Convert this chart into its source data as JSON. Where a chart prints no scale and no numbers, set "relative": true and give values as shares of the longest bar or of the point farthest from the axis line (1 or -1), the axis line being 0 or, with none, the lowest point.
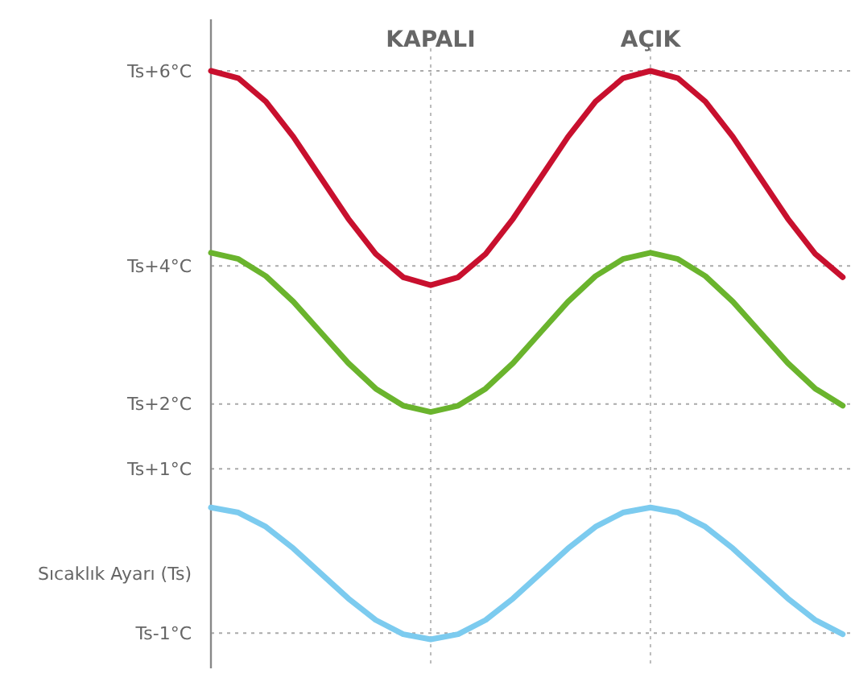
{
  "chart_data": {
    "type": "line",
    "categories": [
      null,
      null,
      null,
      null,
      null,
      null,
      null,
      null,
      "KAPALI",
      null,
      null,
      null,
      null,
      null,
      null,
      null,
      "AÇIK",
      null,
      null,
      null,
      null,
      null,
      null,
      null
    ],
    "relative": true,
    "ref_lines": [
      {
        "axis": "y",
        "value": 1.0,
        "label": "Ts+6°C",
        "line_style": "dotted"
      },
      {
        "axis": "y",
        "value": 0.657,
        "label": "Ts+4°C",
        "line_style": "dotted"
      },
      {
        "axis": "y",
        "value": 0.414,
        "label": "Ts+2°C",
        "line_style": "dotted"
      },
      {
        "axis": "y",
        "value": 0.3,
        "label": "Ts+1°C",
        "line_style": "dotted"
      },
      {
        "axis": "y",
        "value": 0.011,
        "label": "Ts-1°C",
        "line_style": "dotted"
      }
    ],
    "annotations": [
      "Sıcaklık Ayarı (Ts)"
    ],
    "grid": "x",
    "series": [
      {
        "color": "#c8102e",
        "values": [
          1.0,
          0.987,
          0.946,
          0.884,
          0.812,
          0.74,
          0.678,
          0.637,
          0.623,
          0.637,
          0.678,
          0.74,
          0.812,
          0.884,
          0.946,
          0.987,
          1.0,
          0.987,
          0.946,
          0.884,
          0.812,
          0.74,
          0.678,
          0.637
        ]
      },
      {
        "color": "#6ab42d",
        "values": [
          0.68,
          0.669,
          0.639,
          0.594,
          0.54,
          0.486,
          0.441,
          0.411,
          0.4,
          0.411,
          0.441,
          0.486,
          0.54,
          0.594,
          0.639,
          0.669,
          0.68,
          0.669,
          0.639,
          0.594,
          0.54,
          0.486,
          0.441,
          0.411
        ]
      },
      {
        "color": "#7ccbef",
        "values": [
          0.232,
          0.223,
          0.198,
          0.16,
          0.116,
          0.072,
          0.034,
          0.009,
          0,
          0.009,
          0.034,
          0.072,
          0.116,
          0.16,
          0.198,
          0.223,
          0.232,
          0.223,
          0.198,
          0.16,
          0.116,
          0.072,
          0.034,
          0.009
        ]
      }
    ],
    "line_style": "solid"
  }
}
